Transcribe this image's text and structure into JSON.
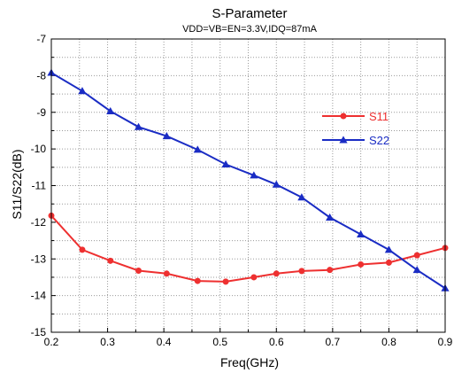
{
  "chart_data": {
    "type": "line",
    "title": "S-Parameter",
    "subtitle": "VDD=VB=EN=3.3V,IDQ=87mA",
    "xlabel": "Freq(GHz)",
    "ylabel": "S11/S22(dB)",
    "xlim": [
      0.2,
      0.9
    ],
    "ylim": [
      -15,
      -7
    ],
    "xticks": [
      0.2,
      0.3,
      0.4,
      0.5,
      0.6,
      0.7,
      0.8,
      0.9
    ],
    "yticks": [
      -15,
      -14,
      -13,
      -12,
      -11,
      -10,
      -9,
      -8,
      -7
    ],
    "grid": true,
    "legend_position": "right",
    "series": [
      {
        "name": "S11",
        "color": "#ee3030",
        "marker": "circle",
        "x": [
          0.2,
          0.255,
          0.305,
          0.355,
          0.405,
          0.46,
          0.51,
          0.56,
          0.6,
          0.645,
          0.695,
          0.75,
          0.8,
          0.85,
          0.9
        ],
        "y": [
          -11.82,
          -12.75,
          -13.05,
          -13.32,
          -13.4,
          -13.6,
          -13.62,
          -13.5,
          -13.4,
          -13.33,
          -13.3,
          -13.15,
          -13.1,
          -12.9,
          -12.7
        ]
      },
      {
        "name": "S22",
        "color": "#1a2cc4",
        "marker": "triangle",
        "x": [
          0.2,
          0.255,
          0.305,
          0.355,
          0.405,
          0.46,
          0.51,
          0.56,
          0.6,
          0.645,
          0.695,
          0.75,
          0.8,
          0.85,
          0.9
        ],
        "y": [
          -7.92,
          -8.42,
          -8.97,
          -9.4,
          -9.65,
          -10.02,
          -10.42,
          -10.72,
          -10.97,
          -11.32,
          -11.87,
          -12.33,
          -12.75,
          -13.3,
          -13.8
        ]
      }
    ]
  }
}
